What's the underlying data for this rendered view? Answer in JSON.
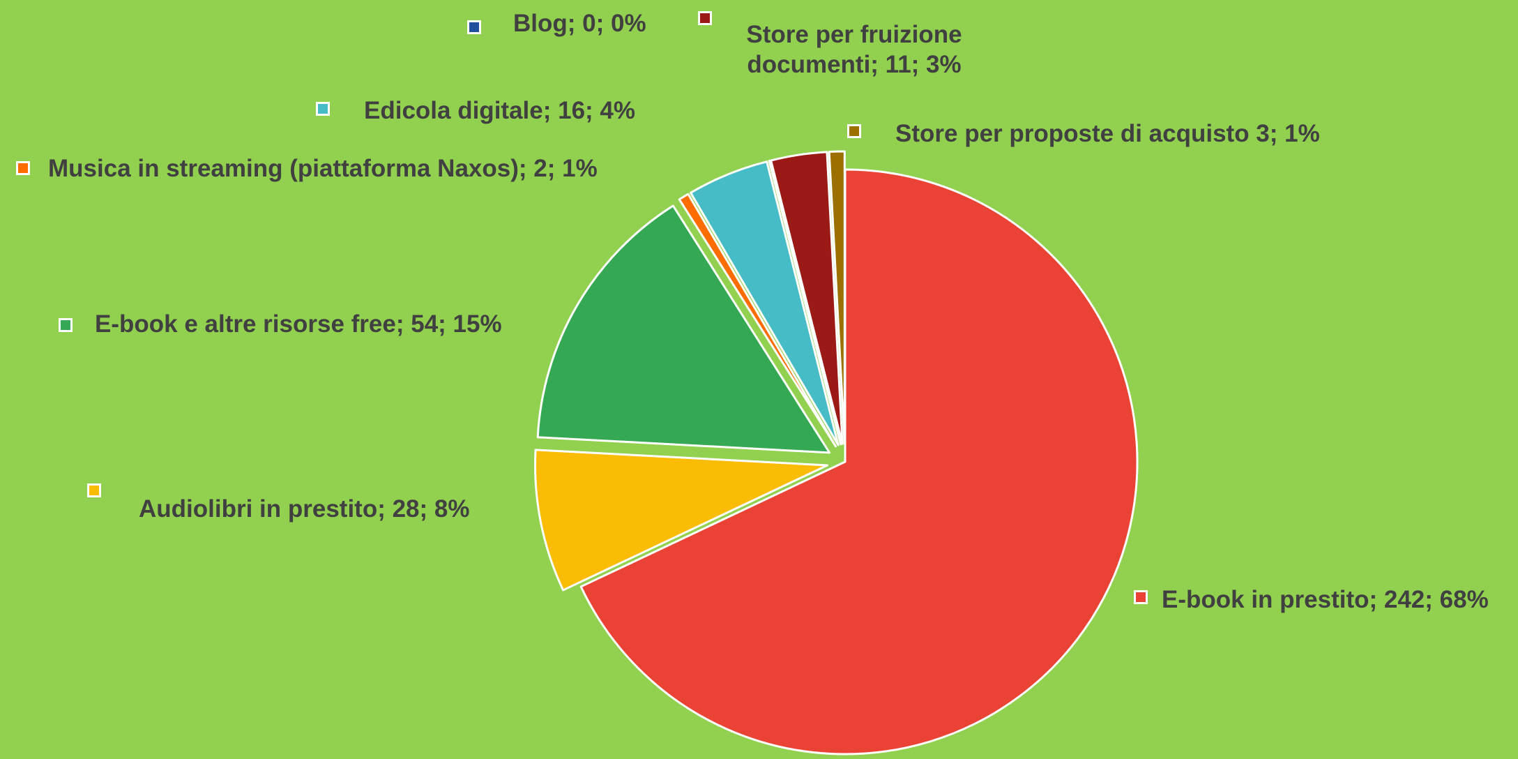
{
  "chart_data": {
    "type": "pie",
    "categories": [
      "E-book in prestito",
      "Audiolibri in prestito",
      "E-book e altre risorse free",
      "Musica in streaming (piattaforma Naxos)",
      "Edicola digitale",
      "Blog",
      "Store per fruizione documenti",
      "Store per proposte di acquisto"
    ],
    "values": [
      242,
      28,
      54,
      2,
      16,
      0,
      11,
      3
    ],
    "value_labels": [
      "E-book in prestito; 242; 68%",
      "Audiolibri in prestito; 28; 8%",
      "E-book e altre risorse free; 54; 15%",
      "Musica in streaming (piattaforma Naxos); 2; 1%",
      "Edicola digitale; 16; 4%",
      "Blog; 0; 0%",
      "Store per fruizione documenti; 11; 3%",
      "Store per proposte di acquisto 3; 1%"
    ],
    "colors": [
      "#ea4335",
      "#fbbc05",
      "#34a853",
      "#ff6d01",
      "#46bdc6",
      "#1f4e9c",
      "#9c1a16",
      "#9c7000"
    ]
  }
}
